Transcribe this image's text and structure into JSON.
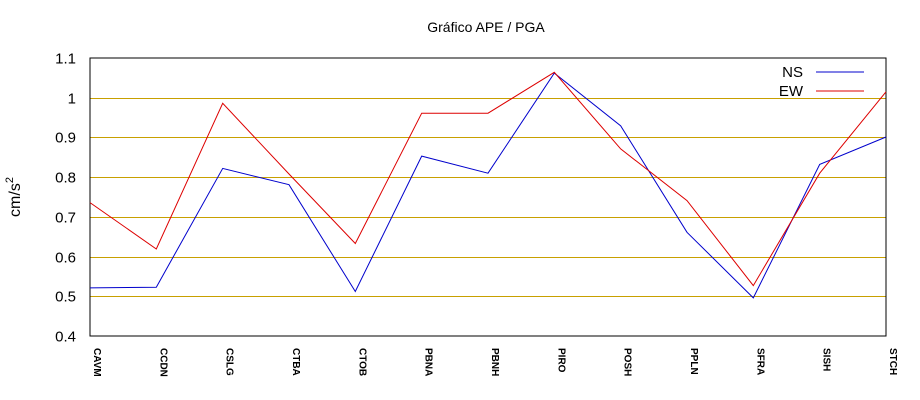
{
  "chart_data": {
    "type": "line",
    "title": "Gráfico  APE / PGA",
    "xlabel": "",
    "ylabel": "cm/s",
    "ylabel_superscript": "2",
    "ylim": [
      0.4,
      1.1
    ],
    "yticks": [
      "0.4",
      "0.5",
      "0.6",
      "0.7",
      "0.8",
      "0.9",
      "1",
      "1.1"
    ],
    "ytick_values": [
      0.4,
      0.5,
      0.6,
      0.7,
      0.8,
      0.9,
      1.0,
      1.1
    ],
    "grid": "horizontal",
    "grid_color": "#c8a000",
    "legend_position": "top-right",
    "categories": [
      "CAVM",
      "CCDN",
      "CSLG",
      "CTBA",
      "CTOB",
      "PBNA",
      "PBNH",
      "PIRO",
      "POSH",
      "PPLN",
      "SFRA",
      "SISH",
      "STCH"
    ],
    "series": [
      {
        "name": "NS",
        "color": "#0000cc",
        "values": [
          0.521,
          0.523,
          0.822,
          0.781,
          0.512,
          0.853,
          0.81,
          1.062,
          0.929,
          0.661,
          0.496,
          0.832,
          0.901
        ]
      },
      {
        "name": "EW",
        "color": "#dd0000",
        "values": [
          0.736,
          0.619,
          0.986,
          0.808,
          0.633,
          0.961,
          0.961,
          1.064,
          0.871,
          0.741,
          0.527,
          0.81,
          1.015
        ]
      }
    ]
  }
}
